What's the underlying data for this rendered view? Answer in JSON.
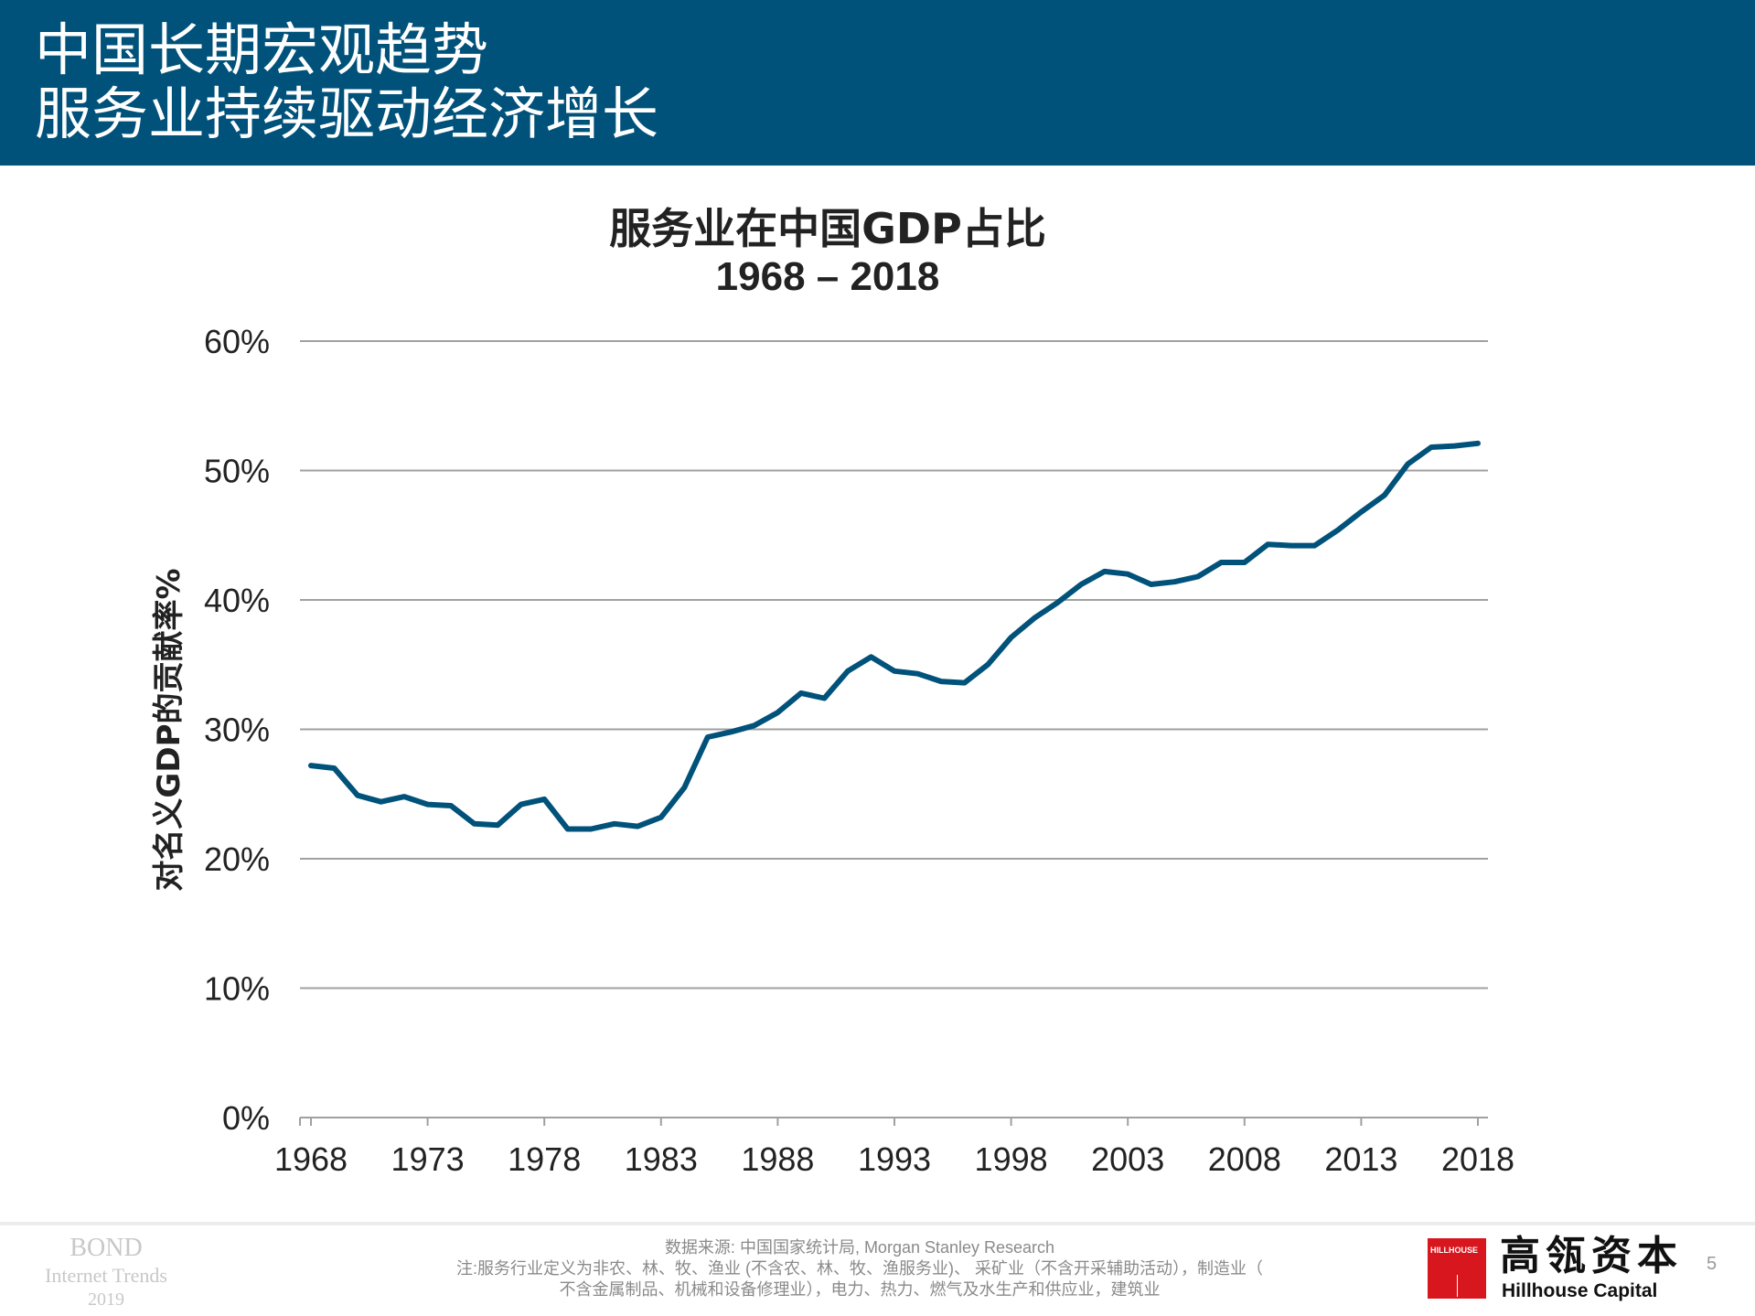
{
  "header": {
    "title_line1": "中国长期宏观趋势",
    "title_line2": "服务业持续驱动经济增长"
  },
  "chart_data": {
    "type": "line",
    "title": "服务业在中国GDP占比",
    "subtitle": "1968 – 2018",
    "ylabel": "对名义GDP的贡献率%",
    "xlabel": "",
    "ylim": [
      0,
      60
    ],
    "xlim": [
      1968,
      2018
    ],
    "yticks": [
      "0%",
      "10%",
      "20%",
      "30%",
      "40%",
      "50%",
      "60%"
    ],
    "xticks": [
      "1968",
      "1973",
      "1978",
      "1983",
      "1988",
      "1993",
      "1998",
      "2003",
      "2008",
      "2013",
      "2018"
    ],
    "grid": true,
    "color": "#00527b",
    "x": [
      1968,
      1969,
      1970,
      1971,
      1972,
      1973,
      1974,
      1975,
      1976,
      1977,
      1978,
      1979,
      1980,
      1981,
      1982,
      1983,
      1984,
      1985,
      1986,
      1987,
      1988,
      1989,
      1990,
      1991,
      1992,
      1993,
      1994,
      1995,
      1996,
      1997,
      1998,
      1999,
      2000,
      2001,
      2002,
      2003,
      2004,
      2005,
      2006,
      2007,
      2008,
      2009,
      2010,
      2011,
      2012,
      2013,
      2014,
      2015,
      2016,
      2017,
      2018
    ],
    "values": [
      27.2,
      27.0,
      24.9,
      24.4,
      24.8,
      24.2,
      24.1,
      22.7,
      22.6,
      24.2,
      24.6,
      22.3,
      22.3,
      22.7,
      22.5,
      23.2,
      25.5,
      29.4,
      29.8,
      30.3,
      31.3,
      32.8,
      32.4,
      34.5,
      35.6,
      34.5,
      34.3,
      33.7,
      33.6,
      35.0,
      37.1,
      38.6,
      39.8,
      41.2,
      42.2,
      42.0,
      41.2,
      41.4,
      41.8,
      42.9,
      42.9,
      44.3,
      44.2,
      44.2,
      45.4,
      46.8,
      48.1,
      50.5,
      51.8,
      51.9,
      52.1
    ]
  },
  "footer": {
    "bond": "BOND",
    "bond_sub": "Internet Trends",
    "bond_year": "2019",
    "source": "数据来源: 中国国家统计局, Morgan Stanley Research",
    "note1": "注:服务行业定义为非农、林、牧、渔业 (不含农、林、牧、渔服务业)、 采矿业（不含开采辅助活动），制造业（",
    "note2": "不含金属制品、机械和设备修理业），电力、热力、燃气及水生产和供应业，建筑业",
    "logo_tag": "HILLHOUSE",
    "logo_cn": "高瓴资本",
    "logo_en": "Hillhouse Capital",
    "page": "5"
  }
}
